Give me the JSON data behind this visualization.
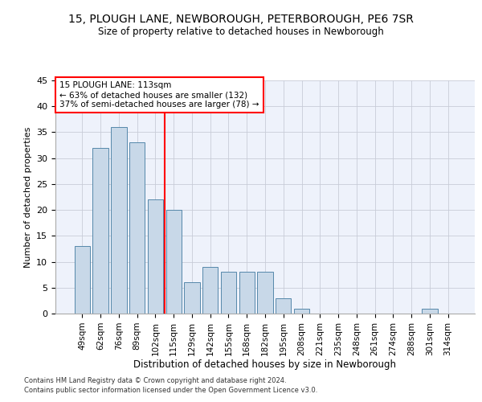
{
  "title_line1": "15, PLOUGH LANE, NEWBOROUGH, PETERBOROUGH, PE6 7SR",
  "title_line2": "Size of property relative to detached houses in Newborough",
  "xlabel": "Distribution of detached houses by size in Newborough",
  "ylabel": "Number of detached properties",
  "footnote1": "Contains HM Land Registry data © Crown copyright and database right 2024.",
  "footnote2": "Contains public sector information licensed under the Open Government Licence v3.0.",
  "annotation_line1": "15 PLOUGH LANE: 113sqm",
  "annotation_line2": "← 63% of detached houses are smaller (132)",
  "annotation_line3": "37% of semi-detached houses are larger (78) →",
  "bar_labels": [
    "49sqm",
    "62sqm",
    "76sqm",
    "89sqm",
    "102sqm",
    "115sqm",
    "129sqm",
    "142sqm",
    "155sqm",
    "168sqm",
    "182sqm",
    "195sqm",
    "208sqm",
    "221sqm",
    "235sqm",
    "248sqm",
    "261sqm",
    "274sqm",
    "288sqm",
    "301sqm",
    "314sqm"
  ],
  "bar_values": [
    13,
    32,
    36,
    33,
    22,
    20,
    6,
    9,
    8,
    8,
    8,
    3,
    1,
    0,
    0,
    0,
    0,
    0,
    0,
    1,
    0
  ],
  "bar_color": "#c8d8e8",
  "bar_edge_color": "#5588aa",
  "vline_index": 5,
  "vline_color": "red",
  "bg_color": "#eef2fb",
  "grid_color": "#c8ccd8",
  "ylim": [
    0,
    45
  ],
  "yticks": [
    0,
    5,
    10,
    15,
    20,
    25,
    30,
    35,
    40,
    45
  ]
}
